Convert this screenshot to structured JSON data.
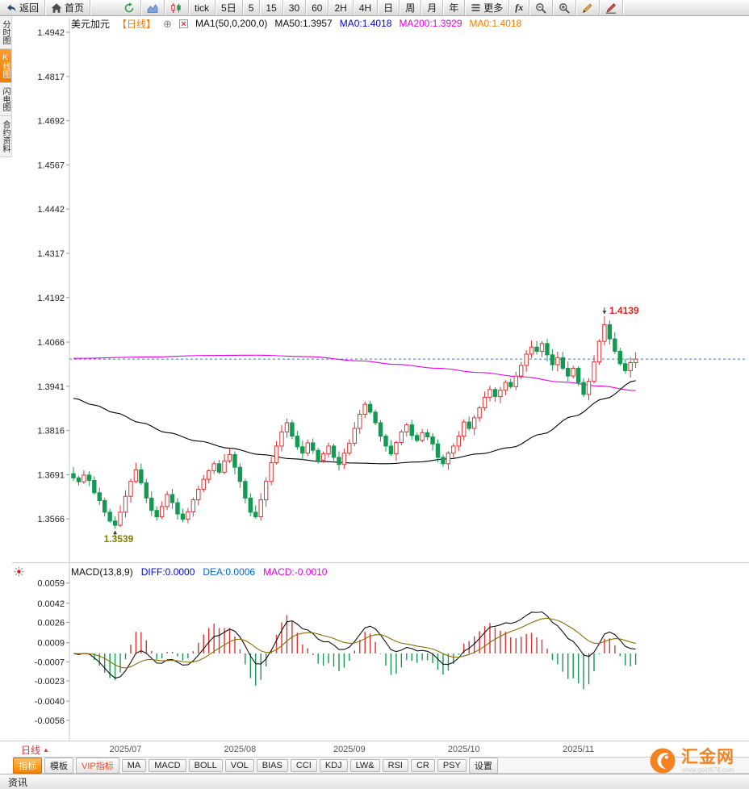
{
  "toolbar": {
    "items": [
      {
        "id": "back",
        "icon": "back",
        "label": "返回"
      },
      {
        "id": "home",
        "icon": "home",
        "label": "首页"
      },
      {
        "id": "refresh",
        "icon": "refresh",
        "label": ""
      },
      {
        "id": "area-chart",
        "icon": "area",
        "label": ""
      },
      {
        "id": "candle-chart",
        "icon": "candles",
        "label": ""
      },
      {
        "id": "tick",
        "label": "tick"
      },
      {
        "id": "5d",
        "label": "5日"
      },
      {
        "id": "m5",
        "label": "5"
      },
      {
        "id": "m15",
        "label": "15"
      },
      {
        "id": "m30",
        "label": "30"
      },
      {
        "id": "m60",
        "label": "60"
      },
      {
        "id": "h2",
        "label": "2H"
      },
      {
        "id": "h4",
        "label": "4H"
      },
      {
        "id": "day",
        "label": "日"
      },
      {
        "id": "week",
        "label": "周"
      },
      {
        "id": "month",
        "label": "月"
      },
      {
        "id": "year",
        "label": "年"
      },
      {
        "id": "more",
        "icon": "menu",
        "label": "更多"
      },
      {
        "id": "fx",
        "label": "fx"
      },
      {
        "id": "zoom-out",
        "icon": "zoomout",
        "label": ""
      },
      {
        "id": "zoom-in",
        "icon": "zoomin",
        "label": ""
      },
      {
        "id": "draw",
        "icon": "pencil",
        "label": ""
      },
      {
        "id": "draw-line",
        "icon": "pencil2",
        "label": ""
      }
    ]
  },
  "sidebar": {
    "tabs": [
      {
        "id": "time-chart",
        "label": "分时图",
        "active": false
      },
      {
        "id": "kline-chart",
        "label": "K线图",
        "active": true
      },
      {
        "id": "lightning-chart",
        "label": "闪电图",
        "active": false
      },
      {
        "id": "contract-info",
        "label": "合约资料",
        "active": false
      }
    ]
  },
  "chart": {
    "title": "美元加元",
    "period_tag": "【日线】",
    "ma_settings": "MA1(50,0,200,0)",
    "ma50_label": "MA50:1.3957",
    "ma0_blue_label": "MA0:1.4018",
    "ma200_label": "MA200:1.3929",
    "ma0_orange_label": "MA0:1.4018"
  },
  "macd": {
    "title": "MACD(13,8,9)",
    "diff_label": "DIFF:0.0000",
    "dea_label": "DEA:0.0006",
    "macd_label": "MACD:-0.0010"
  },
  "bottom": {
    "period_label": "日线",
    "tabs": [
      {
        "id": "indicators",
        "label": "指标",
        "style": "active"
      },
      {
        "id": "templates",
        "label": "模板",
        "style": ""
      },
      {
        "id": "vip-indicators",
        "label": "VIP指标",
        "style": "vip"
      },
      {
        "id": "ma",
        "label": "MA",
        "style": ""
      },
      {
        "id": "macd",
        "label": "MACD",
        "style": ""
      },
      {
        "id": "boll",
        "label": "BOLL",
        "style": ""
      },
      {
        "id": "vol",
        "label": "VOL",
        "style": ""
      },
      {
        "id": "bias",
        "label": "BIAS",
        "style": ""
      },
      {
        "id": "cci",
        "label": "CCI",
        "style": ""
      },
      {
        "id": "kdj",
        "label": "KDJ",
        "style": ""
      },
      {
        "id": "lw",
        "label": "LW&",
        "style": ""
      },
      {
        "id": "rsi",
        "label": "RSI",
        "style": ""
      },
      {
        "id": "cr",
        "label": "CR",
        "style": ""
      },
      {
        "id": "psy",
        "label": "PSY",
        "style": ""
      },
      {
        "id": "settings",
        "label": "设置",
        "style": ""
      }
    ],
    "status_label": "资讯",
    "logo_text": "汇金网",
    "logo_sub": "www.gold678.com"
  },
  "colors": {
    "accent_orange": "#f58220",
    "header_period": "#f07d00",
    "ma0_blue": "#0008d8",
    "ma200_magenta": "#e400e4",
    "macd_value_magenta": "#e400e4"
  },
  "chart_data": {
    "type": "candlestick",
    "title": "美元加元 日线 (USD/CAD daily) with MA50/MA200 and MACD(13,8,9)",
    "x_labels": [
      "2025/07",
      "2025/08",
      "2025/09",
      "2025/10",
      "2025/11"
    ],
    "month_start_indices": [
      10,
      32,
      53,
      75,
      97
    ],
    "y_ticks_price": [
      1.4942,
      1.4817,
      1.4692,
      1.4567,
      1.4442,
      1.4317,
      1.4192,
      1.4066,
      1.3941,
      1.3816,
      1.3691,
      1.3566
    ],
    "y_ticks_macd": [
      0.0059,
      0.0042,
      0.0026,
      0.0009,
      -0.0007,
      -0.0023,
      -0.004,
      -0.0056
    ],
    "closes": [
      1.3682,
      1.3671,
      1.369,
      1.3675,
      1.364,
      1.3618,
      1.3585,
      1.356,
      1.3548,
      1.3585,
      1.363,
      1.3672,
      1.3705,
      1.3668,
      1.3625,
      1.359,
      1.3572,
      1.3601,
      1.3635,
      1.3612,
      1.358,
      1.3565,
      1.3586,
      1.362,
      1.365,
      1.3678,
      1.3702,
      1.3722,
      1.3698,
      1.373,
      1.3748,
      1.3712,
      1.3672,
      1.3625,
      1.3585,
      1.3572,
      1.362,
      1.3672,
      1.3725,
      1.3772,
      1.3812,
      1.3838,
      1.38,
      1.377,
      1.3752,
      1.3781,
      1.376,
      1.3732,
      1.375,
      1.3772,
      1.374,
      1.372,
      1.3752,
      1.378,
      1.3822,
      1.3862,
      1.389,
      1.3868,
      1.3838,
      1.38,
      1.3772,
      1.375,
      1.3782,
      1.3812,
      1.3832,
      1.3802,
      1.3788,
      1.381,
      1.3798,
      1.3778,
      1.374,
      1.3722,
      1.3752,
      1.3772,
      1.38,
      1.384,
      1.3822,
      1.3852,
      1.388,
      1.391,
      1.3932,
      1.3912,
      1.393,
      1.3952,
      1.394,
      1.397,
      1.4,
      1.4032,
      1.4052,
      1.404,
      1.4062,
      1.403,
      1.4002,
      1.4022,
      1.3992,
      1.397,
      1.3992,
      1.3952,
      1.3918,
      1.3955,
      1.401,
      1.4068,
      1.4115,
      1.4075,
      1.404,
      1.4005,
      1.3985,
      1.4008,
      1.4018
    ],
    "ma50": {
      "color": "#000000",
      "points": [
        [
          0,
          1.3907
        ],
        [
          4,
          1.3888
        ],
        [
          8,
          1.3866
        ],
        [
          13,
          1.3838
        ],
        [
          18,
          1.381
        ],
        [
          24,
          1.3786
        ],
        [
          30,
          1.3766
        ],
        [
          36,
          1.3748
        ],
        [
          42,
          1.3736
        ],
        [
          48,
          1.3728
        ],
        [
          54,
          1.3724
        ],
        [
          60,
          1.3722
        ],
        [
          66,
          1.3727
        ],
        [
          72,
          1.3736
        ],
        [
          78,
          1.375
        ],
        [
          84,
          1.3768
        ],
        [
          90,
          1.3806
        ],
        [
          96,
          1.3856
        ],
        [
          102,
          1.3906
        ],
        [
          108,
          1.3957
        ]
      ]
    },
    "ma200": {
      "color": "#e400e4",
      "points": [
        [
          0,
          1.402
        ],
        [
          15,
          1.4024
        ],
        [
          25,
          1.4028
        ],
        [
          35,
          1.4029
        ],
        [
          45,
          1.4025
        ],
        [
          55,
          1.4013
        ],
        [
          62,
          1.4003
        ],
        [
          70,
          1.3992
        ],
        [
          78,
          1.398
        ],
        [
          86,
          1.3968
        ],
        [
          94,
          1.3953
        ],
        [
          101,
          1.3942
        ],
        [
          108,
          1.3929
        ]
      ]
    },
    "last_price_line": {
      "value": 1.4018,
      "color": "#2d7fb8"
    },
    "high_marker": {
      "index": 102,
      "price": 1.4139,
      "label": "1.4139",
      "color": "#dd2222"
    },
    "low_marker": {
      "index": 8,
      "price": 1.3539,
      "label": "1.3539",
      "color": "#808000"
    },
    "macd_params": {
      "display": "MACD(13,8,9)",
      "short": 8,
      "long": 13,
      "signal": 9
    },
    "colors": {
      "up": "#dd3333",
      "down": "#129a52",
      "macd_diff": "#111111",
      "macd_dea": "#8a6d00"
    }
  }
}
